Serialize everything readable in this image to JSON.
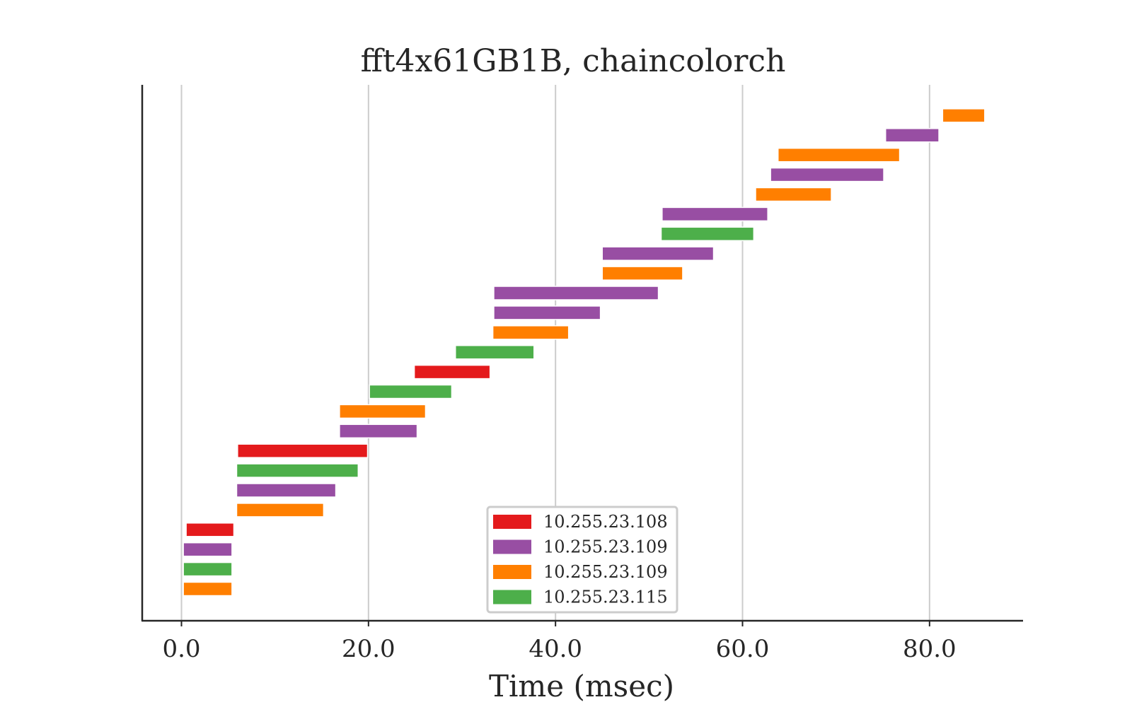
{
  "chart_data": {
    "type": "bar",
    "orientation": "horizontal-gantt",
    "title": "fft4x61GB1B, chaincolorch",
    "xlabel": "Time (msec)",
    "ylabel": "",
    "xlim": [
      -4.2,
      90.0
    ],
    "xticks": [
      0,
      20,
      40,
      60,
      80
    ],
    "xtick_labels": [
      "0.0",
      "20.0",
      "40.0",
      "60.0",
      "80.0"
    ],
    "grid_x": true,
    "grid_y": false,
    "legend_position": "lower-center",
    "series": [
      {
        "name": "10.255.23.108",
        "color": "#e41a1c"
      },
      {
        "name": "10.255.23.109",
        "color": "#984ea3"
      },
      {
        "name": "10.255.23.109",
        "color": "#ff7f00"
      },
      {
        "name": "10.255.23.115",
        "color": "#4daf4a"
      }
    ],
    "tasks": [
      {
        "row": 0,
        "start": 0.2,
        "end": 5.4,
        "series": 2
      },
      {
        "row": 1,
        "start": 0.2,
        "end": 5.4,
        "series": 3
      },
      {
        "row": 2,
        "start": 0.2,
        "end": 5.4,
        "series": 1
      },
      {
        "row": 3,
        "start": 0.5,
        "end": 5.6,
        "series": 0
      },
      {
        "row": 4,
        "start": 5.9,
        "end": 15.2,
        "series": 2
      },
      {
        "row": 5,
        "start": 5.9,
        "end": 16.5,
        "series": 1
      },
      {
        "row": 6,
        "start": 5.9,
        "end": 18.9,
        "series": 3
      },
      {
        "row": 7,
        "start": 6.0,
        "end": 19.9,
        "series": 0
      },
      {
        "row": 8,
        "start": 16.9,
        "end": 25.2,
        "series": 1
      },
      {
        "row": 9,
        "start": 16.9,
        "end": 26.1,
        "series": 2
      },
      {
        "row": 10,
        "start": 20.1,
        "end": 28.9,
        "series": 3
      },
      {
        "row": 11,
        "start": 24.9,
        "end": 33.0,
        "series": 0
      },
      {
        "row": 12,
        "start": 29.3,
        "end": 37.7,
        "series": 3
      },
      {
        "row": 13,
        "start": 33.3,
        "end": 41.4,
        "series": 2
      },
      {
        "row": 14,
        "start": 33.4,
        "end": 44.8,
        "series": 1
      },
      {
        "row": 15,
        "start": 33.4,
        "end": 51.0,
        "series": 1
      },
      {
        "row": 16,
        "start": 45.0,
        "end": 53.6,
        "series": 2
      },
      {
        "row": 17,
        "start": 45.0,
        "end": 56.9,
        "series": 1
      },
      {
        "row": 18,
        "start": 51.3,
        "end": 61.2,
        "series": 3
      },
      {
        "row": 19,
        "start": 51.4,
        "end": 62.7,
        "series": 1
      },
      {
        "row": 20,
        "start": 61.4,
        "end": 69.5,
        "series": 2
      },
      {
        "row": 21,
        "start": 63.0,
        "end": 75.1,
        "series": 1
      },
      {
        "row": 22,
        "start": 63.8,
        "end": 76.8,
        "series": 2
      },
      {
        "row": 23,
        "start": 75.3,
        "end": 81.0,
        "series": 1
      },
      {
        "row": 24,
        "start": 81.4,
        "end": 85.9,
        "series": 2
      }
    ]
  }
}
